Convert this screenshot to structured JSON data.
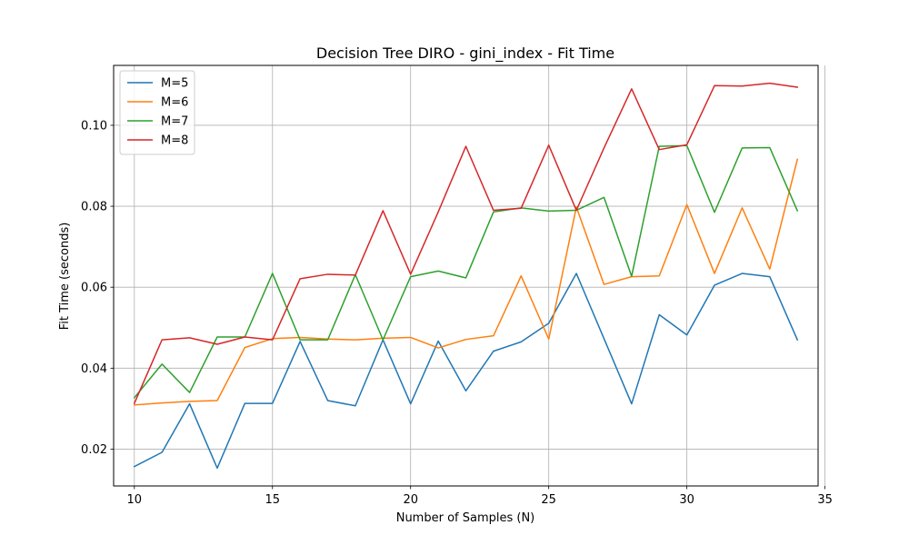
{
  "chart_data": {
    "type": "line",
    "title": "Decision Tree DIRO - gini_index - Fit Time",
    "xlabel": "Number of Samples (N)",
    "ylabel": "Fit Time (seconds)",
    "xlim": [
      9.25,
      34.75
    ],
    "ylim": [
      0.0109,
      0.1148
    ],
    "xticks": [
      10,
      15,
      20,
      25,
      30,
      35
    ],
    "yticks": [
      0.02,
      0.04,
      0.06,
      0.08,
      0.1
    ],
    "xtick_labels": [
      "10",
      "15",
      "20",
      "25",
      "30",
      "35"
    ],
    "ytick_labels": [
      "0.02",
      "0.04",
      "0.06",
      "0.08",
      "0.10"
    ],
    "grid": true,
    "legend_position": "top-left",
    "x": [
      10,
      11,
      12,
      13,
      14,
      15,
      16,
      17,
      18,
      19,
      20,
      21,
      22,
      23,
      24,
      25,
      26,
      27,
      28,
      29,
      30,
      31,
      32,
      33,
      34
    ],
    "series": [
      {
        "name": "M=5",
        "color": "#1f77b4",
        "values": [
          0.0157,
          0.0192,
          0.0312,
          0.0153,
          0.0313,
          0.0313,
          0.0466,
          0.032,
          0.0307,
          0.047,
          0.0312,
          0.0467,
          0.0344,
          0.0442,
          0.0465,
          0.0511,
          0.0634,
          0.0473,
          0.0312,
          0.0532,
          0.0482,
          0.0605,
          0.0634,
          0.0626,
          0.047
        ]
      },
      {
        "name": "M=6",
        "color": "#ff7f0e",
        "values": [
          0.0309,
          0.0314,
          0.0318,
          0.032,
          0.0451,
          0.0473,
          0.0476,
          0.0472,
          0.047,
          0.0474,
          0.0476,
          0.045,
          0.0471,
          0.048,
          0.0628,
          0.0472,
          0.0798,
          0.0607,
          0.0626,
          0.0628,
          0.0804,
          0.0634,
          0.0796,
          0.0645,
          0.0916
        ]
      },
      {
        "name": "M=7",
        "color": "#2ca02c",
        "values": [
          0.0327,
          0.041,
          0.034,
          0.0477,
          0.0477,
          0.0634,
          0.047,
          0.047,
          0.0631,
          0.047,
          0.0626,
          0.064,
          0.0623,
          0.0786,
          0.0796,
          0.0788,
          0.079,
          0.0822,
          0.0627,
          0.0948,
          0.095,
          0.0785,
          0.0944,
          0.0945,
          0.0789
        ]
      },
      {
        "name": "M=8",
        "color": "#d62728",
        "values": [
          0.0313,
          0.047,
          0.0475,
          0.0459,
          0.0477,
          0.047,
          0.0621,
          0.0632,
          0.063,
          0.0789,
          0.0632,
          0.0786,
          0.0948,
          0.079,
          0.0795,
          0.0951,
          0.079,
          0.0944,
          0.109,
          0.094,
          0.0952,
          0.1098,
          0.1097,
          0.1104,
          0.1094
        ]
      }
    ]
  }
}
